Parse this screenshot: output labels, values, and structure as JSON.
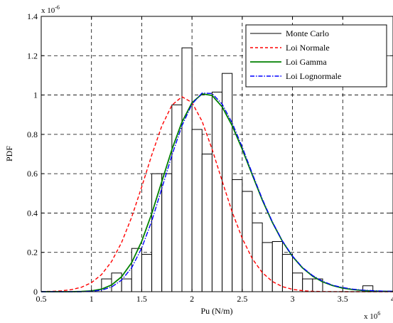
{
  "chart_data": {
    "type": "bar",
    "xlabel": "Pu (N/m)",
    "ylabel": "PDF",
    "x_exponent_label": "x 10",
    "x_exponent_power": "6",
    "y_exponent_label": "x 10",
    "y_exponent_power": "-6",
    "xlim": [
      0.5,
      4.0
    ],
    "ylim": [
      0,
      1.4
    ],
    "x_ticks": [
      "0.5",
      "1",
      "1.5",
      "2",
      "2.5",
      "3",
      "3.5",
      "4"
    ],
    "y_ticks": [
      "0",
      "0.2",
      "0.4",
      "0.6",
      "0.8",
      "1",
      "1.2",
      "1.4"
    ],
    "grid": true,
    "legend_position": "top-right",
    "legend": [
      "Monte Carlo",
      "Loi Normale",
      "Loi Gamma",
      "Loi Lognormale"
    ],
    "histogram": {
      "name": "Monte Carlo",
      "bins": [
        {
          "x0": 1.1,
          "x1": 1.2,
          "value": 0.065
        },
        {
          "x0": 1.2,
          "x1": 1.3,
          "value": 0.095
        },
        {
          "x0": 1.3,
          "x1": 1.4,
          "value": 0.065
        },
        {
          "x0": 1.4,
          "x1": 1.5,
          "value": 0.22
        },
        {
          "x0": 1.5,
          "x1": 1.6,
          "value": 0.19
        },
        {
          "x0": 1.6,
          "x1": 1.7,
          "value": 0.6
        },
        {
          "x0": 1.7,
          "x1": 1.8,
          "value": 0.6
        },
        {
          "x0": 1.8,
          "x1": 1.9,
          "value": 0.95
        },
        {
          "x0": 1.9,
          "x1": 2.0,
          "value": 1.24
        },
        {
          "x0": 2.0,
          "x1": 2.1,
          "value": 0.825
        },
        {
          "x0": 2.1,
          "x1": 2.2,
          "value": 0.7
        },
        {
          "x0": 2.2,
          "x1": 2.3,
          "value": 1.015
        },
        {
          "x0": 2.3,
          "x1": 2.4,
          "value": 1.11
        },
        {
          "x0": 2.4,
          "x1": 2.5,
          "value": 0.57
        },
        {
          "x0": 2.5,
          "x1": 2.6,
          "value": 0.51
        },
        {
          "x0": 2.6,
          "x1": 2.7,
          "value": 0.35
        },
        {
          "x0": 2.7,
          "x1": 2.8,
          "value": 0.25
        },
        {
          "x0": 2.8,
          "x1": 2.9,
          "value": 0.255
        },
        {
          "x0": 2.9,
          "x1": 3.0,
          "value": 0.19
        },
        {
          "x0": 3.0,
          "x1": 3.1,
          "value": 0.095
        },
        {
          "x0": 3.1,
          "x1": 3.2,
          "value": 0.065
        },
        {
          "x0": 3.2,
          "x1": 3.3,
          "value": 0.065
        },
        {
          "x0": 3.7,
          "x1": 3.8,
          "value": 0.03
        }
      ]
    },
    "series": [
      {
        "name": "Loi Normale",
        "color": "#ff0000",
        "dash": "dashed",
        "x": [
          0.5,
          0.6,
          0.7,
          0.8,
          0.9,
          1.0,
          1.1,
          1.2,
          1.3,
          1.4,
          1.5,
          1.6,
          1.7,
          1.8,
          1.9,
          2.0,
          2.1,
          2.2,
          2.3,
          2.4,
          2.5,
          2.6,
          2.7,
          2.8,
          2.9,
          3.0,
          3.1,
          3.2,
          3.3,
          3.4,
          3.5,
          3.6,
          3.7,
          3.8,
          3.9,
          4.0
        ],
        "y": [
          0.0005,
          0.0013,
          0.0033,
          0.0078,
          0.0171,
          0.0348,
          0.066,
          0.116,
          0.1893,
          0.2867,
          0.403,
          0.5262,
          0.6377,
          0.7175,
          0.7499,
          0.7279,
          0.6559,
          0.5485,
          0.4257,
          0.3066,
          0.2049,
          0.1271,
          0.0732,
          0.0391,
          0.0194,
          0.0089,
          0.0038,
          0.0015,
          0.0006,
          0.0002,
          0.0001,
          0.0,
          0.0,
          0.0,
          0.0,
          0.0
        ],
        "y_scale": 1.322
      },
      {
        "name": "Loi Gamma",
        "color": "#008000",
        "dash": "solid",
        "x": [
          0.5,
          0.6,
          0.7,
          0.8,
          0.9,
          1.0,
          1.1,
          1.2,
          1.3,
          1.4,
          1.5,
          1.6,
          1.7,
          1.8,
          1.9,
          2.0,
          2.1,
          2.2,
          2.3,
          2.4,
          2.5,
          2.6,
          2.7,
          2.8,
          2.9,
          3.0,
          3.1,
          3.2,
          3.3,
          3.4,
          3.5,
          3.6,
          3.7,
          3.8,
          3.9,
          4.0
        ],
        "y": [
          0.0,
          0.0,
          0.0,
          0.0,
          0.001,
          0.004,
          0.013,
          0.034,
          0.076,
          0.148,
          0.256,
          0.398,
          0.56,
          0.723,
          0.862,
          0.96,
          1.006,
          0.998,
          0.94,
          0.844,
          0.724,
          0.594,
          0.466,
          0.352,
          0.256,
          0.179,
          0.121,
          0.079,
          0.05,
          0.031,
          0.018,
          0.011,
          0.006,
          0.003,
          0.002,
          0.001
        ]
      },
      {
        "name": "Loi Lognormale",
        "color": "#0000ff",
        "dash": "dashdot",
        "x": [
          0.5,
          0.6,
          0.7,
          0.8,
          0.9,
          1.0,
          1.1,
          1.2,
          1.3,
          1.4,
          1.5,
          1.6,
          1.7,
          1.8,
          1.9,
          2.0,
          2.1,
          2.2,
          2.3,
          2.4,
          2.5,
          2.6,
          2.7,
          2.8,
          2.9,
          3.0,
          3.1,
          3.2,
          3.3,
          3.4,
          3.5,
          3.6,
          3.7,
          3.8,
          3.9,
          4.0
        ],
        "y": [
          0.0,
          0.0,
          0.0,
          0.0,
          0.0,
          0.002,
          0.008,
          0.024,
          0.059,
          0.122,
          0.222,
          0.36,
          0.525,
          0.694,
          0.844,
          0.954,
          1.01,
          1.008,
          0.954,
          0.858,
          0.735,
          0.601,
          0.471,
          0.355,
          0.258,
          0.181,
          0.123,
          0.082,
          0.053,
          0.033,
          0.021,
          0.013,
          0.008,
          0.005,
          0.003,
          0.002
        ]
      }
    ]
  }
}
